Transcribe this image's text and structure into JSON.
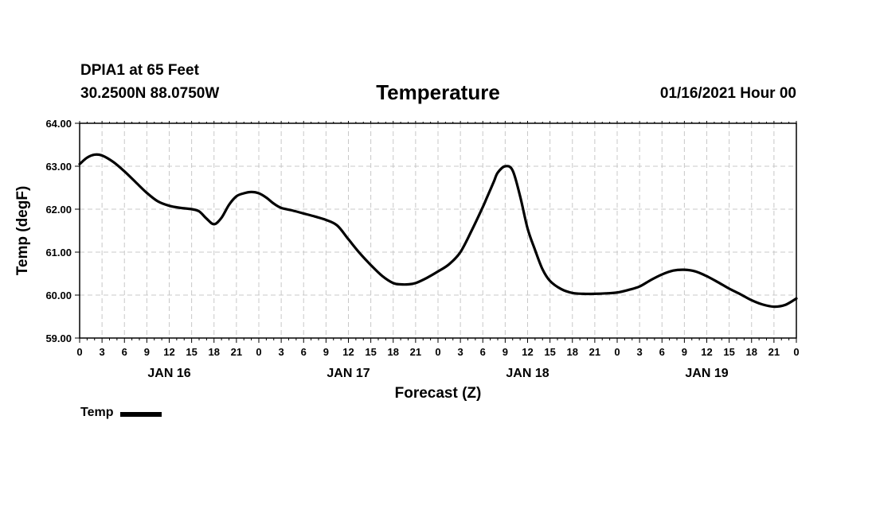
{
  "header": {
    "station": "DPIA1 at 65 Feet",
    "coords": "30.2500N 88.0750W",
    "title": "Temperature",
    "run_time": "01/16/2021 Hour 00"
  },
  "legend": {
    "label": "Temp"
  },
  "colors": {
    "line": "#000000",
    "grid": "#c8c8c8",
    "frame": "#000000",
    "background": "#ffffff"
  },
  "chart_data": {
    "type": "line",
    "title": "Temperature",
    "xlabel": "Forecast (Z)",
    "ylabel": "Temp (degF)",
    "ylim": [
      59.0,
      64.0
    ],
    "xlim_hours": [
      0,
      96
    ],
    "grid": true,
    "legend_position": "bottom-left",
    "y_ticks": [
      "59.00",
      "60.00",
      "61.00",
      "62.00",
      "63.00",
      "64.00"
    ],
    "y_tick_values": [
      59,
      60,
      61,
      62,
      63,
      64
    ],
    "x_ticks": [
      "0",
      "3",
      "6",
      "9",
      "12",
      "15",
      "18",
      "21",
      "0",
      "3",
      "6",
      "9",
      "12",
      "15",
      "18",
      "21",
      "0",
      "3",
      "6",
      "9",
      "12",
      "15",
      "18",
      "21",
      "0",
      "3",
      "6",
      "9",
      "12",
      "15",
      "18",
      "21",
      "0"
    ],
    "day_labels": [
      {
        "label": "JAN 16",
        "hour": 12
      },
      {
        "label": "JAN 17",
        "hour": 36
      },
      {
        "label": "JAN 18",
        "hour": 60
      },
      {
        "label": "JAN 19",
        "hour": 84
      }
    ],
    "series": [
      {
        "name": "Temp",
        "x_hours": [
          0,
          1,
          2,
          3,
          4.5,
          6,
          7.5,
          9,
          10.5,
          12,
          13.5,
          15,
          16,
          17,
          18,
          19,
          20,
          21,
          22,
          23,
          24,
          25,
          26,
          27,
          28.5,
          30,
          31.5,
          33,
          34.5,
          36,
          37.5,
          39,
          40.5,
          42,
          43,
          44,
          45,
          46.5,
          48,
          49.5,
          51,
          52.5,
          54,
          54.5,
          55,
          55.5,
          56,
          57,
          58,
          59,
          60,
          61,
          62,
          63,
          64.5,
          66,
          67.5,
          69,
          70.5,
          72,
          73.5,
          75,
          76.5,
          78,
          79.5,
          81,
          82.5,
          84,
          85.5,
          87,
          88.5,
          90,
          91.5,
          93,
          94.5,
          96
        ],
        "values": [
          63.05,
          63.2,
          63.27,
          63.25,
          63.1,
          62.88,
          62.63,
          62.38,
          62.18,
          62.08,
          62.03,
          62.0,
          61.95,
          61.78,
          61.65,
          61.8,
          62.1,
          62.3,
          62.37,
          62.4,
          62.37,
          62.27,
          62.13,
          62.03,
          61.97,
          61.9,
          61.83,
          61.75,
          61.62,
          61.3,
          60.98,
          60.7,
          60.45,
          60.28,
          60.25,
          60.25,
          60.28,
          60.4,
          60.55,
          60.72,
          61.0,
          61.5,
          62.05,
          62.25,
          62.45,
          62.65,
          62.85,
          63.0,
          62.9,
          62.3,
          61.55,
          61.05,
          60.6,
          60.33,
          60.14,
          60.05,
          60.03,
          60.03,
          60.04,
          60.06,
          60.12,
          60.2,
          60.35,
          60.48,
          60.57,
          60.59,
          60.55,
          60.44,
          60.3,
          60.15,
          60.02,
          59.88,
          59.78,
          59.73,
          59.77,
          59.92
        ]
      }
    ]
  }
}
